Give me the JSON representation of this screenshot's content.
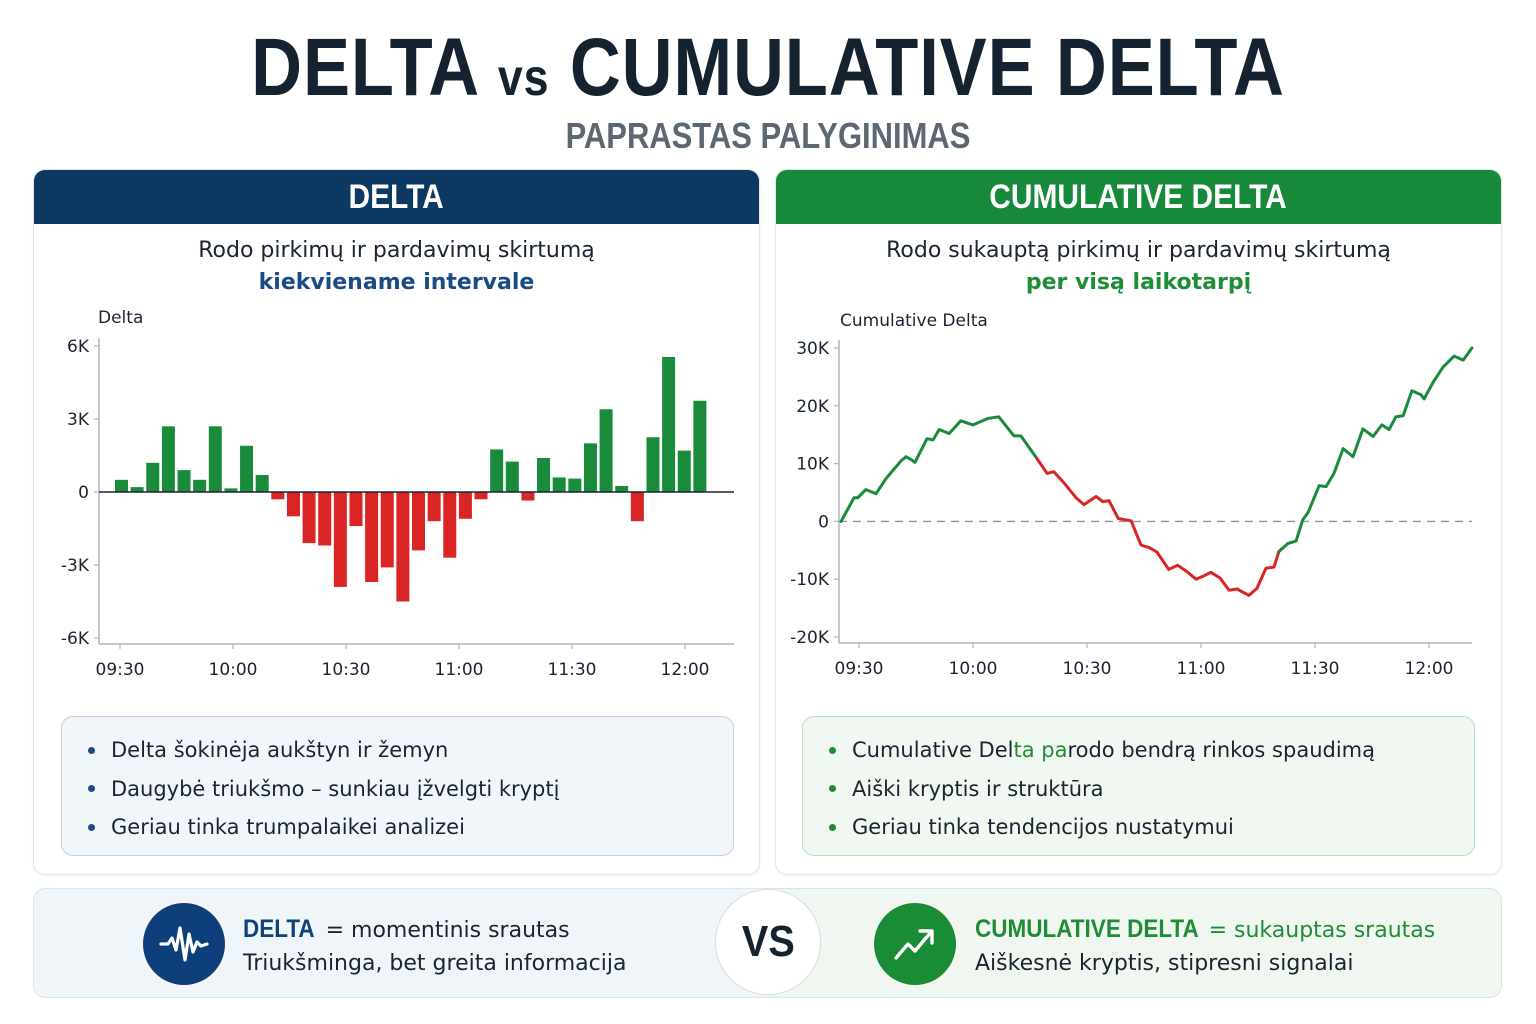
{
  "header": {
    "title_part1": "DELTA",
    "title_vs": "vs",
    "title_part2": "CUMULATIVE DELTA",
    "subtitle": "PAPRASTAS PALYGINIMAS"
  },
  "colors": {
    "delta_navy": "#0d3862",
    "cumulative_green": "#168a3a",
    "positive": "#1a8b3a",
    "negative": "#d92525",
    "text_dark": "#15222f"
  },
  "delta_card": {
    "title": "DELTA",
    "desc_line1": "Rodo pirkimų ir pardavimų skirtumą",
    "desc_line2": "kiekviename intervale",
    "bullets": [
      "Delta šokinėja aukštyn ir žemyn",
      "Daugybė triukšmo – sunkiau įžvelgti kryptį",
      "Geriau tinka trumpalaikei analizei"
    ]
  },
  "cumulative_card": {
    "title": "CUMULATIVE DELTA",
    "desc_line1": "Rodo sukauptą pirkimų ir pardavimų skirtumą",
    "desc_line2": "per visą laikotarpį",
    "bullets": [
      {
        "pre": "Cumulative Del",
        "green": "ta pa",
        "post": "rodo bendrą rinkos spaudimą"
      },
      {
        "pre": "Aiški kryptis ir struktūra",
        "green": "",
        "post": ""
      },
      {
        "pre": "Geriau tinka tendencijos nustatymui",
        "green": "",
        "post": ""
      }
    ]
  },
  "summary": {
    "delta_key": "DELTA",
    "delta_eq": " = momentinis srautas",
    "delta_line2": "Triukšminga, bet greita informacija",
    "vs": "VS",
    "cum_key": "CUMULATIVE DELTA",
    "cum_eq": " = sukauptas srautas",
    "cum_line2": "Aiškesnė kryptis, stipresni signalai"
  },
  "chart_data": [
    {
      "type": "bar",
      "title": "Delta",
      "ylabel": "Delta",
      "xlabel": "",
      "ylim": [
        -6000,
        6000
      ],
      "y_ticks": [
        6000,
        3000,
        0,
        -3000,
        -6000
      ],
      "y_tick_labels": [
        "6K",
        "3K",
        "0",
        "-3K",
        "-6K"
      ],
      "x_ticks": [
        "09:30",
        "10:00",
        "10:30",
        "11:00",
        "11:30",
        "12:00"
      ],
      "x_tick_minutes": [
        0,
        30,
        60,
        90,
        120,
        150
      ],
      "bar_start_minute": 0.4,
      "bar_interval_minutes": 4.15,
      "values": [
        500,
        200,
        1200,
        2700,
        900,
        500,
        2700,
        150,
        1900,
        700,
        -300,
        -1000,
        -2100,
        -2200,
        -3900,
        -1400,
        -3700,
        -3100,
        -4500,
        -2400,
        -1200,
        -2700,
        -1100,
        -300,
        1750,
        1250,
        -350,
        1400,
        600,
        550,
        2000,
        3400,
        250,
        -1200,
        2250,
        5550,
        1700,
        3750
      ],
      "positive_color": "#1a8b3a",
      "negative_color": "#d92525",
      "grid": false,
      "legend": "none"
    },
    {
      "type": "line",
      "title": "Cumulative Delta",
      "ylabel": "Cumulative Delta",
      "xlabel": "",
      "ylim": [
        -20000,
        30000
      ],
      "y_ticks": [
        30000,
        20000,
        10000,
        0,
        -10000,
        -20000
      ],
      "y_tick_labels": [
        "30K",
        "20K",
        "10K",
        "0",
        "-10K",
        "-20K"
      ],
      "x_ticks": [
        "09:30",
        "10:00",
        "10:30",
        "11:00",
        "11:30",
        "12:00"
      ],
      "x_tick_minutes": [
        0,
        30,
        60,
        90,
        120,
        150
      ],
      "zero_line": "dashed",
      "points_minutes": [
        -4.7,
        -1.3,
        -0.3,
        1.8,
        4.5,
        7.1,
        8.9,
        11.1,
        12.4,
        13.7,
        14.7,
        17.9,
        19.5,
        21.1,
        23.7,
        26.8,
        30.0,
        33.9,
        36.8,
        40.8,
        42.6,
        46.8,
        49.5,
        51.3,
        53.9,
        57.1,
        59.2,
        62.4,
        64.2,
        65.8,
        68.2,
        70.0,
        71.6,
        74.2,
        76.3,
        78.4,
        81.5,
        83.9,
        86.1,
        88.7,
        90.5,
        92.6,
        95.0,
        97.4,
        99.5,
        102.6,
        104.7,
        107.1,
        109.2,
        110.5,
        112.9,
        115.0,
        116.8,
        118.2,
        121.1,
        122.9,
        125.0,
        127.4,
        130.0,
        132.6,
        135.3,
        137.6,
        139.5,
        141.3,
        143.2,
        145.5,
        147.9,
        148.7,
        151.1,
        153.7,
        156.6,
        159.0,
        161.3
      ],
      "points_values": [
        0,
        4100,
        4100,
        5500,
        4800,
        7400,
        8800,
        10500,
        11200,
        10700,
        10200,
        14300,
        14100,
        15900,
        15200,
        17400,
        16700,
        17800,
        18100,
        14800,
        14800,
        10900,
        8300,
        8600,
        6700,
        4100,
        2900,
        4300,
        3400,
        3600,
        500,
        300,
        100,
        -4100,
        -4500,
        -5300,
        -8300,
        -7600,
        -8600,
        -10000,
        -9500,
        -8800,
        -9800,
        -11900,
        -11700,
        -12800,
        -11600,
        -8100,
        -7900,
        -5200,
        -3800,
        -3400,
        300,
        1600,
        6200,
        6000,
        8300,
        12600,
        11200,
        16000,
        14700,
        16700,
        15900,
        18100,
        18300,
        22600,
        21900,
        21200,
        24100,
        26700,
        28600,
        27900,
        30000
      ],
      "segments": [
        {
          "color": "#1a8b3a",
          "from_index": 0,
          "to_index": 21,
          "trend": "up"
        },
        {
          "color": "#d92525",
          "from_index": 21,
          "to_index": 49,
          "trend": "down"
        },
        {
          "color": "#1a8b3a",
          "from_index": 49,
          "to_index": 72,
          "trend": "up"
        }
      ],
      "grid": false,
      "legend": "none"
    }
  ]
}
